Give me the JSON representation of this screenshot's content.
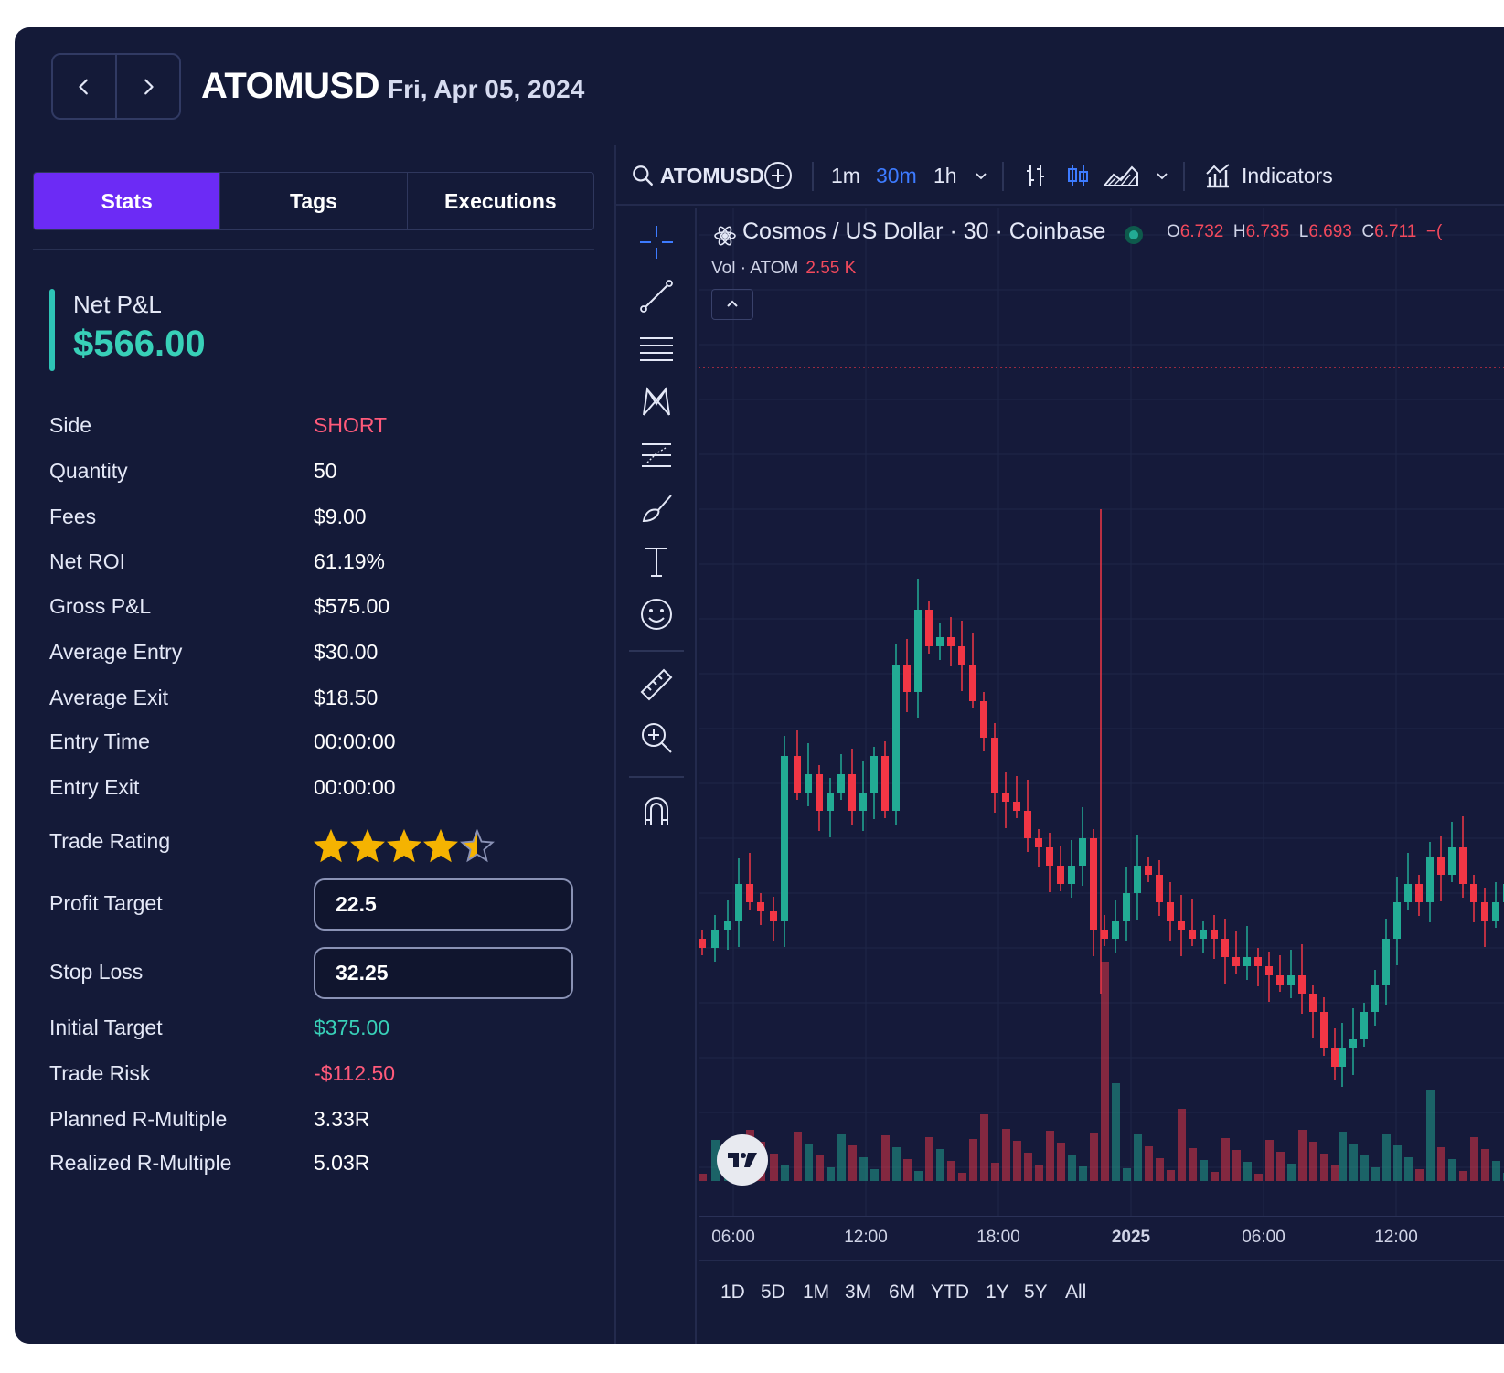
{
  "header": {
    "symbol": "ATOMUSD",
    "date": "Fri, Apr 05, 2024",
    "nav": {
      "prev_icon": "chevron-left-icon",
      "next_icon": "chevron-right-icon"
    }
  },
  "tabs": [
    {
      "label": "Stats",
      "active": true
    },
    {
      "label": "Tags",
      "active": false
    },
    {
      "label": "Executions",
      "active": false
    }
  ],
  "net_pnl": {
    "label": "Net P&L",
    "value": "$566.00"
  },
  "stats": [
    {
      "label": "Side",
      "value": "SHORT",
      "tone": "red"
    },
    {
      "label": "Quantity",
      "value": "50"
    },
    {
      "label": "Fees",
      "value": "$9.00"
    },
    {
      "label": "Net ROI",
      "value": "61.19%"
    },
    {
      "label": "Gross P&L",
      "value": "$575.00"
    },
    {
      "label": "Average Entry",
      "value": "$30.00"
    },
    {
      "label": "Average Exit",
      "value": "$18.50"
    },
    {
      "label": "Entry Time",
      "value": "00:00:00"
    },
    {
      "label": "Entry Exit",
      "value": "00:00:00"
    }
  ],
  "rating": {
    "label": "Trade Rating",
    "value": 4.5,
    "max": 5
  },
  "inputs": {
    "profit_target": {
      "label": "Profit Target",
      "value": "22.5"
    },
    "stop_loss": {
      "label": "Stop Loss",
      "value": "32.25"
    }
  },
  "stats2": [
    {
      "label": "Initial Target",
      "value": "$375.00",
      "tone": "teal"
    },
    {
      "label": "Trade Risk",
      "value": "-$112.50",
      "tone": "red"
    },
    {
      "label": "Planned R-Multiple",
      "value": "3.33R"
    },
    {
      "label": "Realized R-Multiple",
      "value": "5.03R"
    }
  ],
  "chart_toolbar": {
    "symbol": "ATOMUSD",
    "intervals": [
      "1m",
      "30m",
      "1h"
    ],
    "active_interval": "30m",
    "indicators_label": "Indicators"
  },
  "chart_legend": {
    "title": "Cosmos / US Dollar · 30 · Coinbase",
    "o_label": "O",
    "o": "6.732",
    "h_label": "H",
    "h": "6.735",
    "l_label": "L",
    "l": "6.693",
    "c_label": "C",
    "c": "6.711",
    "change_partial": "−(",
    "vol_label": "Vol · ATOM",
    "vol_value": "2.55 K"
  },
  "time_axis": [
    "06:00",
    "12:00",
    "18:00",
    "2025",
    "06:00",
    "12:00"
  ],
  "ranges": [
    "1D",
    "5D",
    "1M",
    "3M",
    "6M",
    "YTD",
    "1Y",
    "5Y",
    "All"
  ],
  "colors": {
    "up": "#22ab94",
    "down": "#f23645",
    "accent": "#6c2bf5",
    "blue": "#3d7bff"
  }
}
